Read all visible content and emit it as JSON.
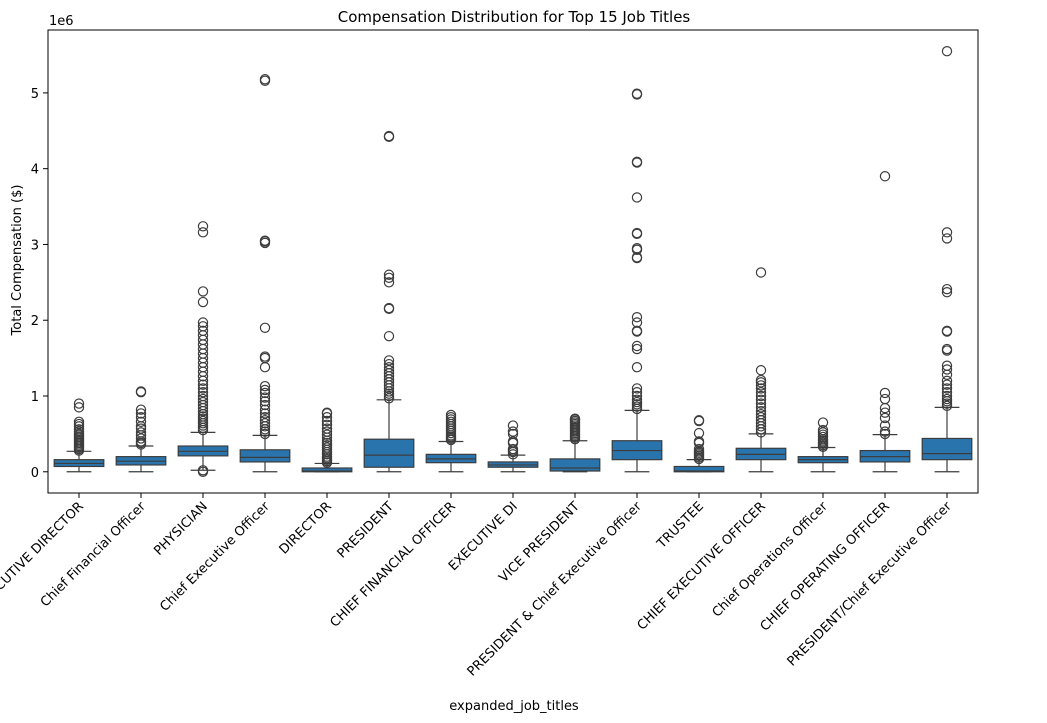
{
  "chart_data": {
    "type": "box",
    "title": "Compensation Distribution for Top 15 Job Titles",
    "xlabel": "expanded_job_titles",
    "ylabel": "Total Compensation ($)",
    "y_offset_label": "1e6",
    "ylim": [
      -0.28,
      5.83
    ],
    "y_ticks": [
      0,
      1,
      2,
      3,
      4,
      5
    ],
    "box_color": "#2a74ad",
    "categories": [
      "EXECUTIVE DIRECTOR",
      "Chief Financial Officer",
      "PHYSICIAN",
      "Chief Executive Officer",
      "DIRECTOR",
      "PRESIDENT",
      "CHIEF FINANCIAL OFFICER",
      "EXECUTIVE DI",
      "VICE PRESIDENT",
      "PRESIDENT & Chief Executive Officer",
      "TRUSTEE",
      "CHIEF EXECUTIVE OFFICER",
      "Chief Operations Officer",
      "CHIEF OPERATING OFFICER",
      "PRESIDENT/Chief Executive Officer"
    ],
    "boxes": [
      {
        "min": 0.0,
        "q1": 0.07,
        "median": 0.11,
        "q3": 0.16,
        "max": 0.27,
        "outliers": [
          0.28,
          0.3,
          0.32,
          0.34,
          0.36,
          0.38,
          0.4,
          0.42,
          0.44,
          0.46,
          0.48,
          0.5,
          0.53,
          0.56,
          0.6,
          0.63,
          0.66,
          0.85,
          0.9
        ]
      },
      {
        "min": 0.0,
        "q1": 0.09,
        "median": 0.14,
        "q3": 0.2,
        "max": 0.34,
        "outliers": [
          0.36,
          0.38,
          0.4,
          0.44,
          0.48,
          0.52,
          0.57,
          0.6,
          0.66,
          0.72,
          0.77,
          0.82,
          1.05,
          1.06
        ]
      },
      {
        "min": 0.02,
        "q1": 0.21,
        "median": 0.27,
        "q3": 0.34,
        "max": 0.52,
        "outliers": [
          0.0,
          0.02,
          0.55,
          0.58,
          0.61,
          0.64,
          0.67,
          0.7,
          0.73,
          0.76,
          0.8,
          0.84,
          0.88,
          0.92,
          0.96,
          1.0,
          1.05,
          1.1,
          1.15,
          1.2,
          1.26,
          1.32,
          1.38,
          1.44,
          1.5,
          1.56,
          1.62,
          1.68,
          1.74,
          1.8,
          1.86,
          1.92,
          1.97,
          2.24,
          2.38,
          3.16,
          3.24
        ]
      },
      {
        "min": 0.0,
        "q1": 0.13,
        "median": 0.19,
        "q3": 0.29,
        "max": 0.48,
        "outliers": [
          0.5,
          0.53,
          0.56,
          0.6,
          0.64,
          0.68,
          0.72,
          0.77,
          0.82,
          0.88,
          0.93,
          0.98,
          1.04,
          1.08,
          1.13,
          1.38,
          1.5,
          1.52,
          1.9,
          3.02,
          3.04,
          3.05,
          5.16,
          5.18
        ]
      },
      {
        "min": 0.0,
        "q1": 0.0,
        "median": 0.01,
        "q3": 0.05,
        "max": 0.11,
        "outliers": [
          0.12,
          0.14,
          0.16,
          0.18,
          0.2,
          0.23,
          0.26,
          0.29,
          0.32,
          0.35,
          0.38,
          0.41,
          0.45,
          0.49,
          0.53,
          0.57,
          0.62,
          0.67,
          0.72,
          0.77,
          0.78
        ]
      },
      {
        "min": 0.0,
        "q1": 0.06,
        "median": 0.22,
        "q3": 0.43,
        "max": 0.95,
        "outliers": [
          0.97,
          1.0,
          1.03,
          1.06,
          1.1,
          1.14,
          1.18,
          1.22,
          1.26,
          1.3,
          1.34,
          1.38,
          1.42,
          1.47,
          1.79,
          2.15,
          2.16,
          2.5,
          2.56,
          2.6,
          4.42,
          4.43
        ]
      },
      {
        "min": 0.0,
        "q1": 0.12,
        "median": 0.17,
        "q3": 0.23,
        "max": 0.4,
        "outliers": [
          0.42,
          0.44,
          0.46,
          0.48,
          0.51,
          0.54,
          0.57,
          0.6,
          0.63,
          0.66,
          0.69,
          0.72,
          0.75
        ]
      },
      {
        "min": 0.0,
        "q1": 0.06,
        "median": 0.09,
        "q3": 0.13,
        "max": 0.22,
        "outliers": [
          0.23,
          0.26,
          0.28,
          0.3,
          0.38,
          0.4,
          0.5,
          0.53,
          0.61
        ]
      },
      {
        "min": 0.0,
        "q1": 0.01,
        "median": 0.05,
        "q3": 0.17,
        "max": 0.41,
        "outliers": [
          0.43,
          0.45,
          0.47,
          0.49,
          0.51,
          0.53,
          0.55,
          0.57,
          0.59,
          0.61,
          0.63,
          0.65,
          0.67,
          0.69,
          0.7
        ]
      },
      {
        "min": 0.0,
        "q1": 0.16,
        "median": 0.28,
        "q3": 0.41,
        "max": 0.81,
        "outliers": [
          0.83,
          0.86,
          0.89,
          0.92,
          0.95,
          1.0,
          1.05,
          1.1,
          1.38,
          1.62,
          1.66,
          1.85,
          1.86,
          1.97,
          2.04,
          2.82,
          2.83,
          2.93,
          2.95,
          3.14,
          3.15,
          3.62,
          4.08,
          4.09,
          4.98,
          4.99
        ]
      },
      {
        "min": 0.0,
        "q1": 0.0,
        "median": 0.01,
        "q3": 0.07,
        "max": 0.16,
        "outliers": [
          0.17,
          0.19,
          0.21,
          0.23,
          0.25,
          0.27,
          0.3,
          0.38,
          0.4,
          0.51,
          0.67,
          0.68
        ]
      },
      {
        "min": 0.0,
        "q1": 0.16,
        "median": 0.23,
        "q3": 0.31,
        "max": 0.5,
        "outliers": [
          0.52,
          0.56,
          0.6,
          0.64,
          0.68,
          0.72,
          0.76,
          0.8,
          0.85,
          0.9,
          0.95,
          1.0,
          1.05,
          1.1,
          1.14,
          1.18,
          1.21,
          1.34,
          2.63
        ]
      },
      {
        "min": 0.0,
        "q1": 0.12,
        "median": 0.16,
        "q3": 0.2,
        "max": 0.32,
        "outliers": [
          0.33,
          0.35,
          0.37,
          0.39,
          0.41,
          0.43,
          0.46,
          0.49,
          0.52,
          0.55,
          0.65
        ]
      },
      {
        "min": 0.0,
        "q1": 0.13,
        "median": 0.2,
        "q3": 0.28,
        "max": 0.49,
        "outliers": [
          0.5,
          0.53,
          0.61,
          0.71,
          0.78,
          0.84,
          0.96,
          1.04,
          3.9
        ]
      },
      {
        "min": 0.0,
        "q1": 0.16,
        "median": 0.24,
        "q3": 0.44,
        "max": 0.85,
        "outliers": [
          0.87,
          0.9,
          0.93,
          0.96,
          1.0,
          1.05,
          1.1,
          1.15,
          1.2,
          1.28,
          1.35,
          1.4,
          1.6,
          1.62,
          1.85,
          1.86,
          2.37,
          2.41,
          3.08,
          3.16,
          5.55
        ]
      }
    ]
  }
}
